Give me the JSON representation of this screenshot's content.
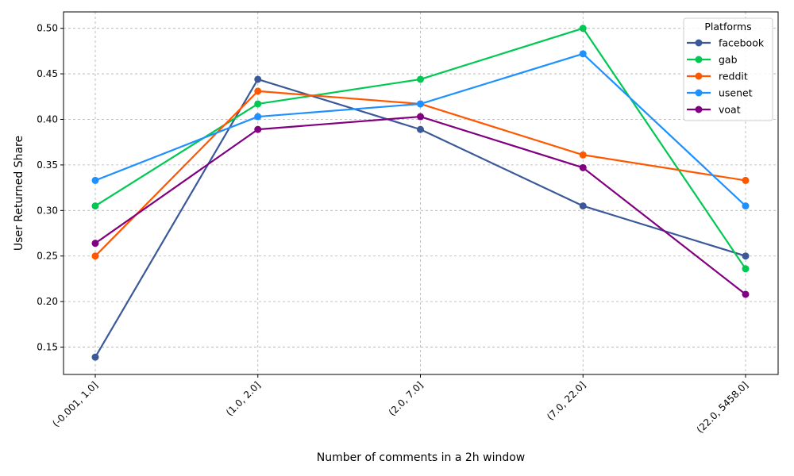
{
  "chart_data": {
    "type": "line",
    "xlabel": "Number of comments in a 2h window",
    "ylabel": "User Returned Share",
    "categories": [
      "(-0.001, 1.0]",
      "(1.0, 2.0]",
      "(2.0, 7.0]",
      "(7.0, 22.0]",
      "(22.0, 5458.0]"
    ],
    "ylim": [
      0.12,
      0.518
    ],
    "yticks": [
      "0.15",
      "0.20",
      "0.25",
      "0.30",
      "0.35",
      "0.40",
      "0.45",
      "0.50"
    ],
    "grid": true,
    "legend": {
      "title": "Platforms",
      "placement": "top-right"
    },
    "series": [
      {
        "name": "facebook",
        "color": "#3b5998",
        "values": [
          0.139,
          0.444,
          0.389,
          0.305,
          0.25
        ]
      },
      {
        "name": "gab",
        "color": "#00c853",
        "values": [
          0.305,
          0.417,
          0.444,
          0.5,
          0.236
        ]
      },
      {
        "name": "reddit",
        "color": "#ff5700",
        "values": [
          0.25,
          0.431,
          0.417,
          0.361,
          0.333
        ]
      },
      {
        "name": "usenet",
        "color": "#1e90ff",
        "values": [
          0.333,
          0.403,
          0.417,
          0.472,
          0.305
        ]
      },
      {
        "name": "voat",
        "color": "#800080",
        "values": [
          0.264,
          0.389,
          0.403,
          0.347,
          0.208
        ]
      }
    ]
  }
}
